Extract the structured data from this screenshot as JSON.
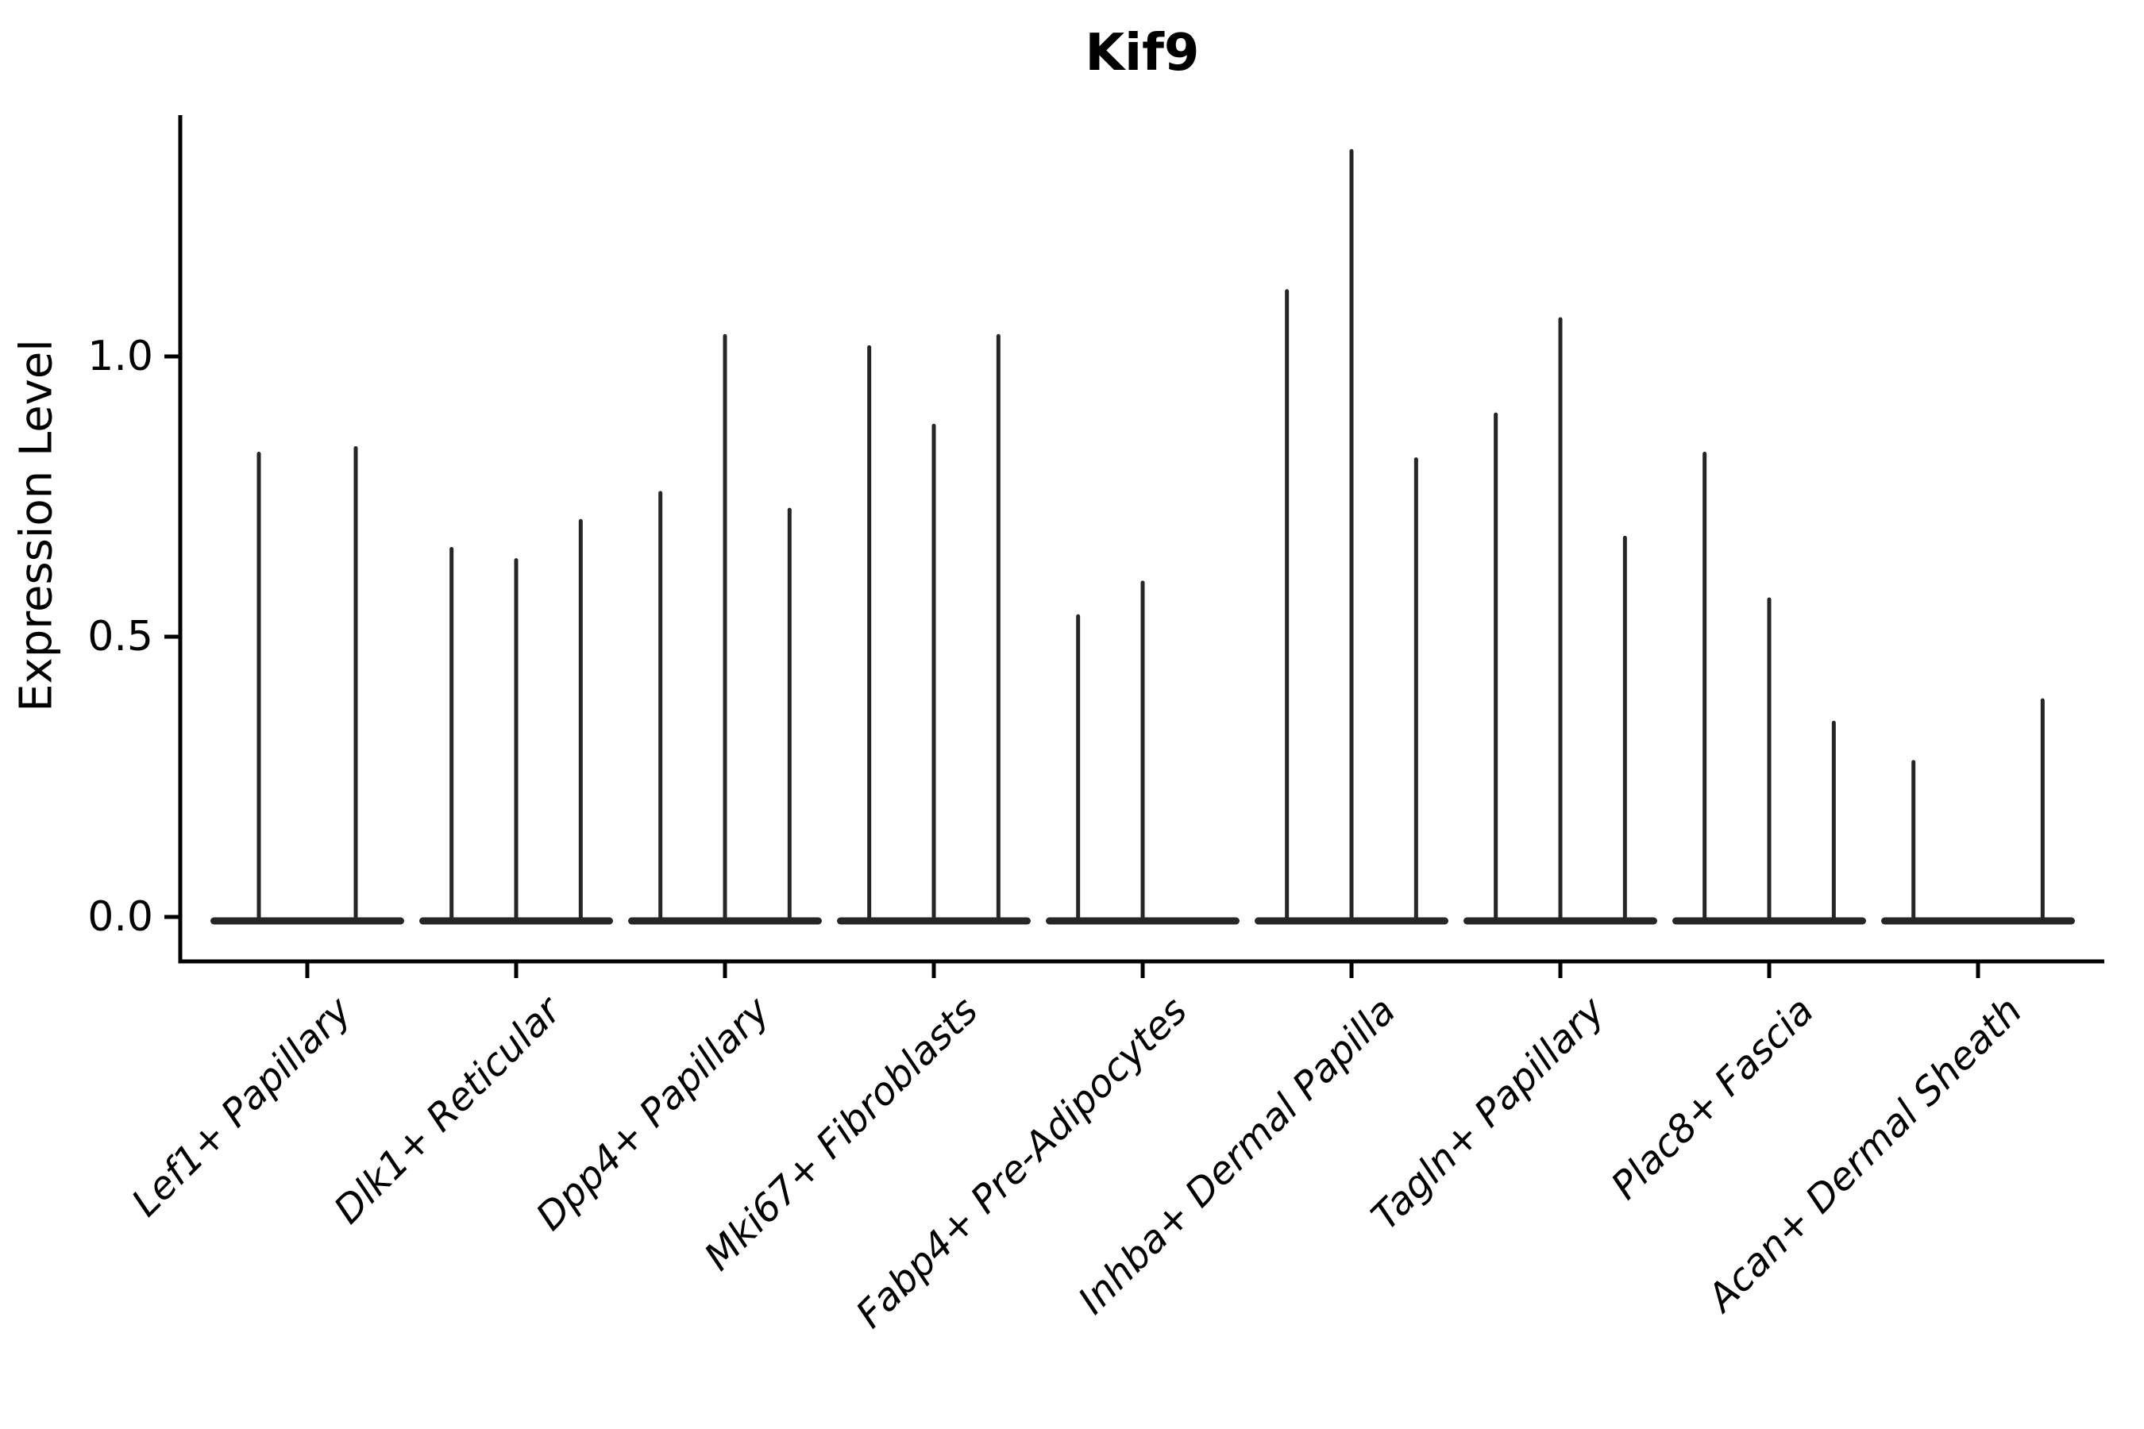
{
  "title": "Kif9",
  "axes": {
    "ylabel": "Expression Level",
    "ytick_labels": [
      "0.0",
      "0.5",
      "1.0"
    ]
  },
  "colors": {
    "violin_line": "#262626",
    "spine": "#000000",
    "background": "#ffffff"
  },
  "chart_data": {
    "type": "violin",
    "title": "Kif9",
    "xlabel": "",
    "ylabel": "Expression Level",
    "ylim": [
      -0.08,
      1.43
    ],
    "yticks": [
      0.0,
      0.5,
      1.0
    ],
    "grid": false,
    "legend": "none",
    "description": "Violin plot of Kif9 expression; nearly all density sits at 0 so each violin renders as a flat base with a thin spike rising to its maximum expression value. Categories hold 2-3 violins (sub-groups); value 0 means a flat violin with no spike.",
    "categories": [
      "Lef1+ Papillary",
      "Dlk1+ Reticular",
      "Dpp4+ Papillary",
      "Mki67+ Fibroblasts",
      "Fabp4+ Pre-Adipocytes",
      "Inhba+ Dermal Papilla",
      "Tagln+ Papillary",
      "Plac8+ Fascia",
      "Acan+ Dermal Sheath"
    ],
    "series": [
      {
        "category": "Lef1+ Papillary",
        "violin_max": [
          0.83,
          0.84
        ]
      },
      {
        "category": "Dlk1+ Reticular",
        "violin_max": [
          0.66,
          0.64,
          0.71
        ]
      },
      {
        "category": "Dpp4+ Papillary",
        "violin_max": [
          0.76,
          1.04,
          0.73
        ]
      },
      {
        "category": "Mki67+ Fibroblasts",
        "violin_max": [
          1.02,
          0.88,
          1.04
        ]
      },
      {
        "category": "Fabp4+ Pre-Adipocytes",
        "violin_max": [
          0.54,
          0.6,
          0.0
        ]
      },
      {
        "category": "Inhba+ Dermal Papilla",
        "violin_max": [
          1.12,
          1.37,
          0.82
        ]
      },
      {
        "category": "Tagln+ Papillary",
        "violin_max": [
          0.9,
          1.07,
          0.68
        ]
      },
      {
        "category": "Plac8+ Fascia",
        "violin_max": [
          0.83,
          0.57,
          0.35
        ]
      },
      {
        "category": "Acan+ Dermal Sheath",
        "violin_max": [
          0.28,
          0.0,
          0.39
        ]
      }
    ]
  }
}
